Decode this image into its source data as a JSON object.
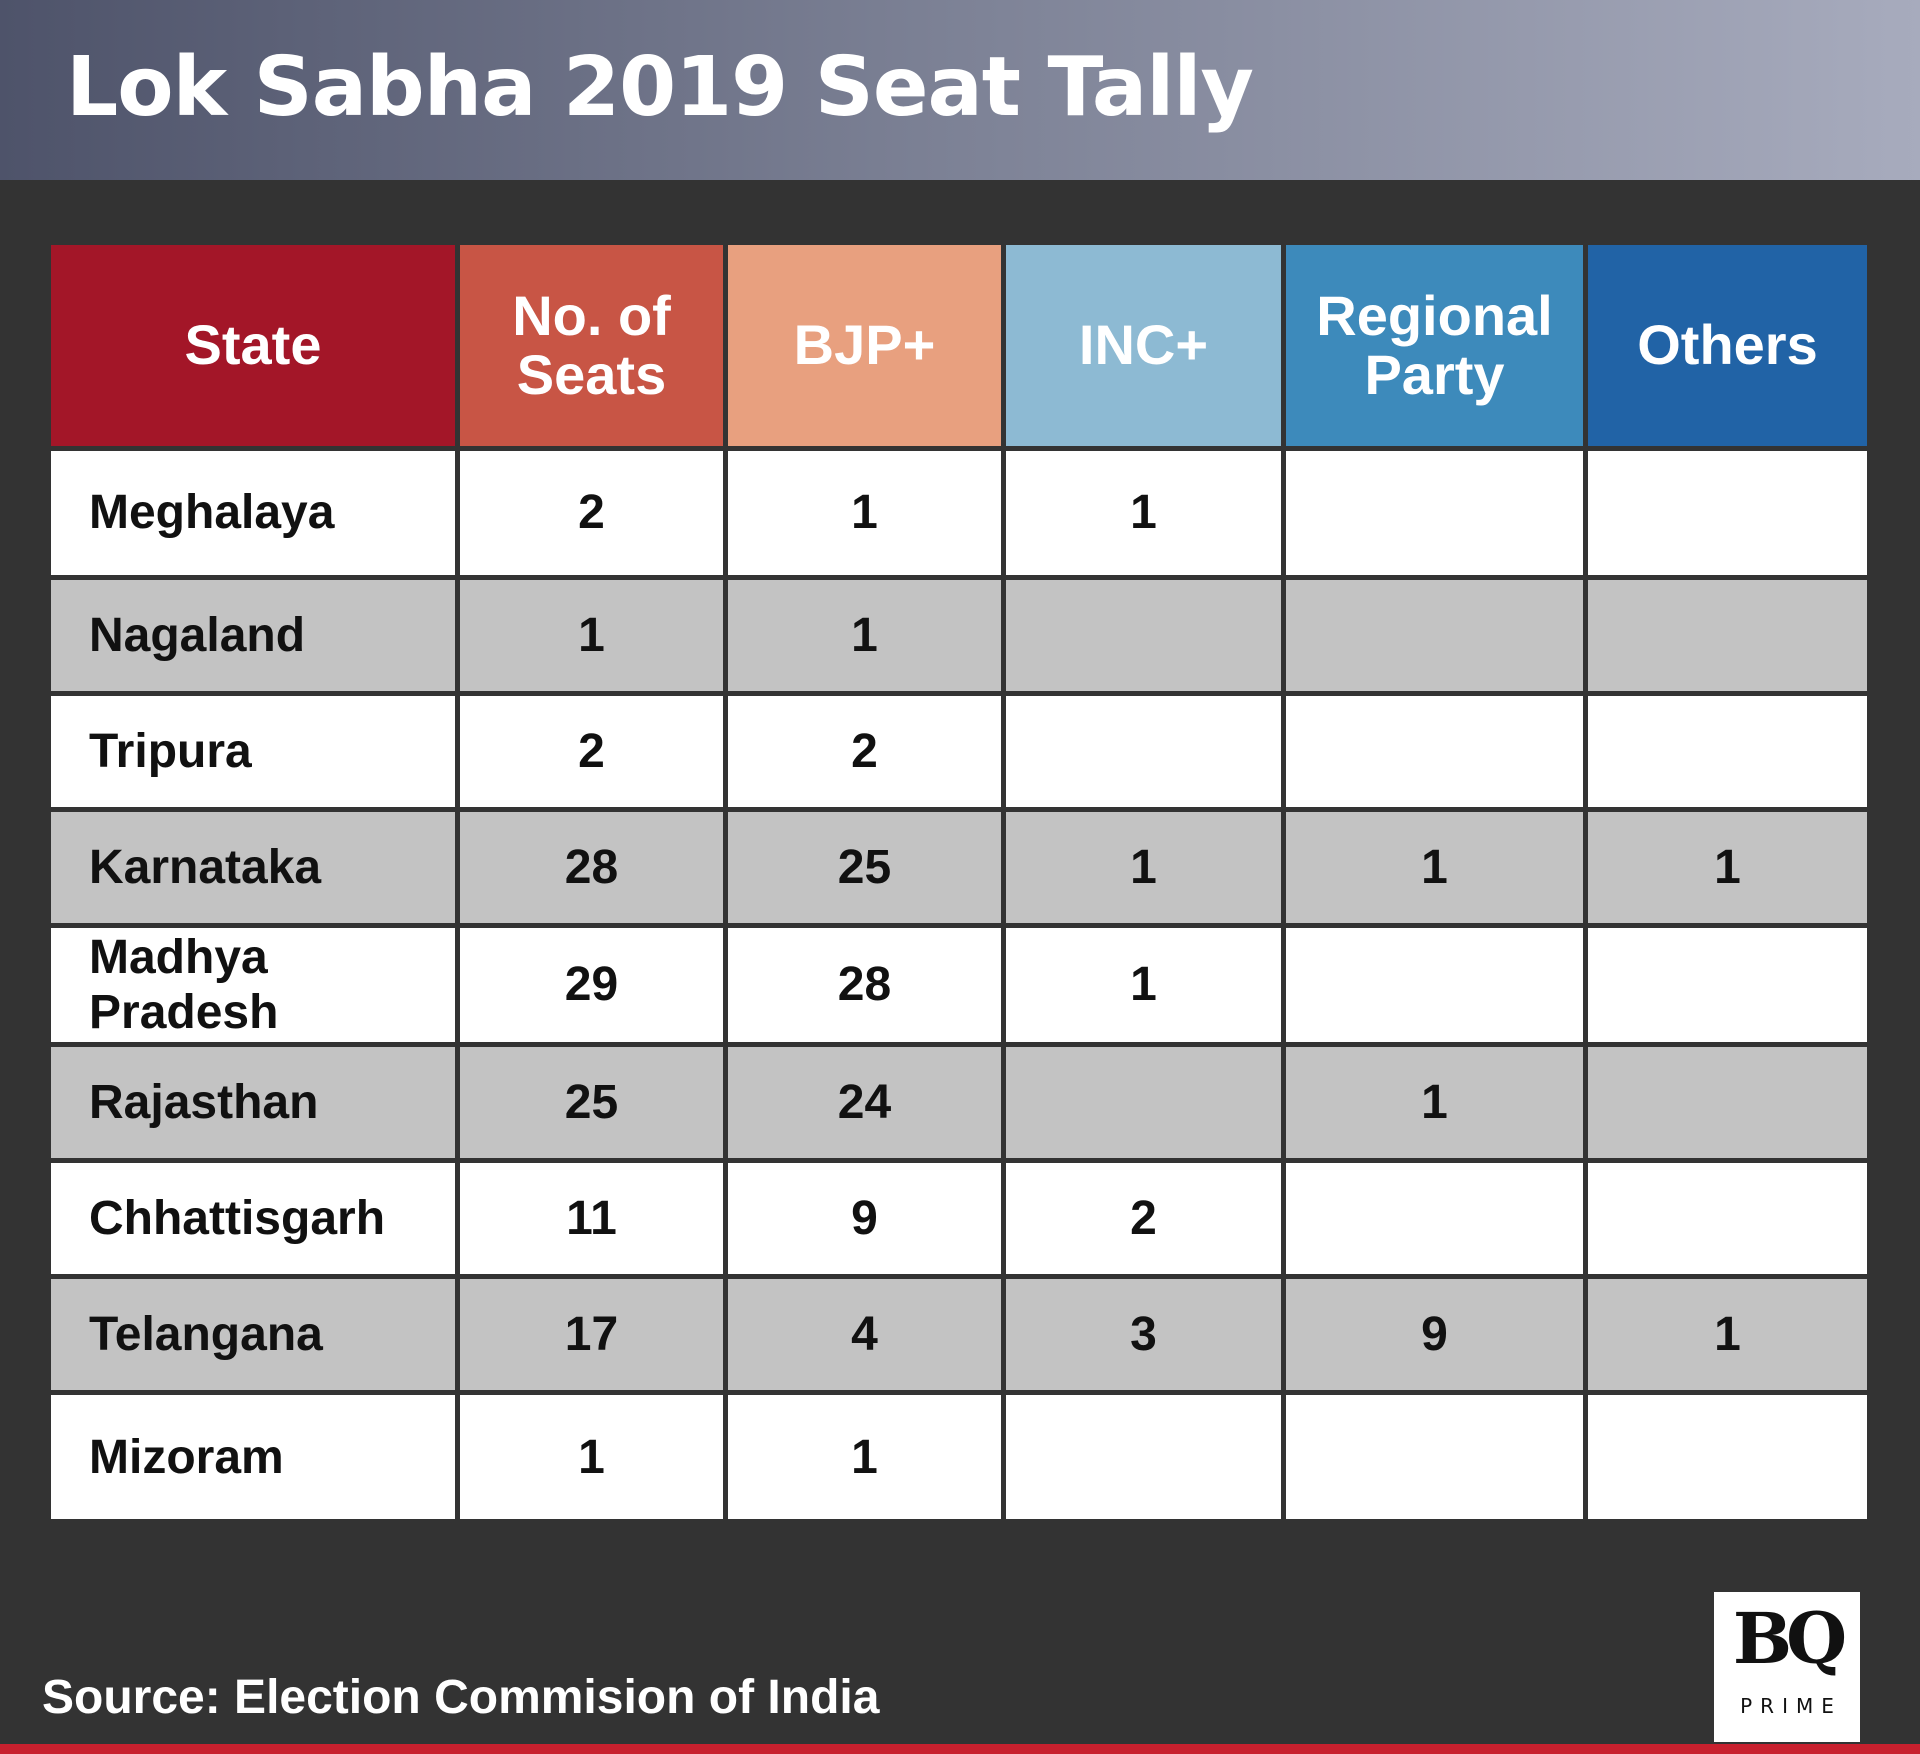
{
  "title": "Lok Sabha 2019 Seat Tally",
  "source": "Source: Election Commision of India",
  "logo": {
    "mark": "BQ",
    "sub": "PRIME"
  },
  "colors": {
    "state_header": "#a31628",
    "seats_header": "#c85545",
    "bjp_header": "#e8a07f",
    "inc_header": "#8dbad3",
    "regional_header": "#3d8abb",
    "others_header": "#2163a6",
    "accent_line": "#c8202e"
  },
  "chart_data": {
    "type": "table",
    "title": "Lok Sabha 2019 Seat Tally",
    "columns": [
      "State",
      "No. of Seats",
      "BJP+",
      "INC+",
      "Regional Party",
      "Others"
    ],
    "rows": [
      [
        "Meghalaya",
        "2",
        "1",
        "1",
        "",
        ""
      ],
      [
        "Nagaland",
        "1",
        "1",
        "",
        "",
        ""
      ],
      [
        "Tripura",
        "2",
        "2",
        "",
        "",
        ""
      ],
      [
        "Karnataka",
        "28",
        "25",
        "1",
        "1",
        "1"
      ],
      [
        "Madhya Pradesh",
        "29",
        "28",
        "1",
        "",
        ""
      ],
      [
        "Rajasthan",
        "25",
        "24",
        "",
        "1",
        ""
      ],
      [
        "Chhattisgarh",
        "11",
        "9",
        "2",
        "",
        ""
      ],
      [
        "Telangana",
        "17",
        "4",
        "3",
        "9",
        "1"
      ],
      [
        "Mizoram",
        "1",
        "1",
        "",
        "",
        ""
      ]
    ]
  }
}
